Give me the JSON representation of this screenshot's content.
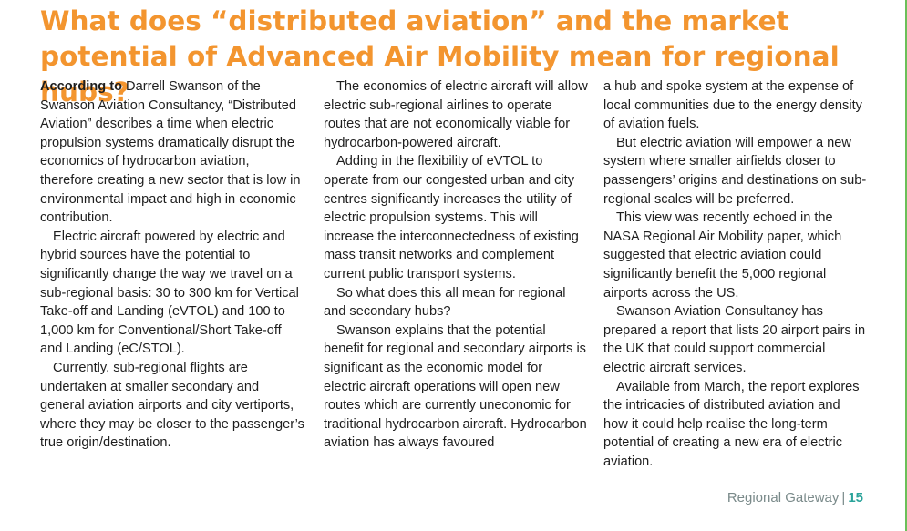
{
  "article": {
    "headline": "What does “distributed aviation” and the market potential of Advanced Air Mobility mean for regional hubs?",
    "columns": [
      {
        "lead": "According to",
        "paragraphs": [
          " Darrell Swanson of the Swanson Aviation Consultancy, “Distributed Aviation” describes a time when electric propulsion systems dramatically disrupt the economics of hydrocarbon aviation, therefore creating a new sector that is low in environmental impact and high in economic contribution.",
          "Electric aircraft powered by electric and hybrid sources have the potential to significantly change the way we travel on a sub-regional basis: 30 to 300 km for Vertical Take-off and Landing (eVTOL) and 100 to 1,000 km for Conventional/Short Take-off and Landing (eC/STOL).",
          "Currently, sub-regional flights are undertaken at smaller secondary and general aviation airports and city vertiports, where they may be closer to the passenger’s true origin/destination."
        ]
      },
      {
        "paragraphs": [
          "The economics of electric aircraft will allow electric sub-regional airlines to operate routes that are not economically viable for hydrocarbon-powered aircraft.",
          "Adding in the flexibility of eVTOL to operate from our congested urban and city centres significantly increases the utility of electric propulsion systems. This will increase the interconnectedness of existing mass transit networks and complement current public transport systems.",
          "So what does this all mean for regional and secondary hubs?",
          "Swanson explains that the potential benefit for regional and secondary airports is significant as the economic model for electric aircraft operations will open new routes which are currently uneconomic for traditional hydrocarbon aircraft. Hydrocarbon aviation has always favoured"
        ]
      },
      {
        "paragraphs": [
          "a hub and spoke system at the expense of local communities due to the energy density of aviation fuels.",
          "But electric aviation will empower a new system where smaller airfields closer to passengers’ origins and destinations on sub-regional scales will be preferred.",
          "This view was recently echoed in the NASA Regional Air Mobility paper, which suggested that electric aviation could significantly benefit the 5,000 regional airports across the US.",
          "Swanson Aviation Consultancy has prepared a report that lists 20 airport pairs in the UK that could support commercial electric aircraft services.",
          "Available from March, the report explores the intricacies of distributed aviation and how it could help realise the long-term potential of creating a new era of electric aviation."
        ]
      }
    ]
  },
  "footer": {
    "publication": "Regional Gateway",
    "separator": "|",
    "page_number": "15"
  },
  "colors": {
    "headline": "#f3952f",
    "body_text": "#1e1e1e",
    "footer_text": "#7a8a8a",
    "page_number": "#2aa39a",
    "edge_rule": "#6bbf59"
  }
}
